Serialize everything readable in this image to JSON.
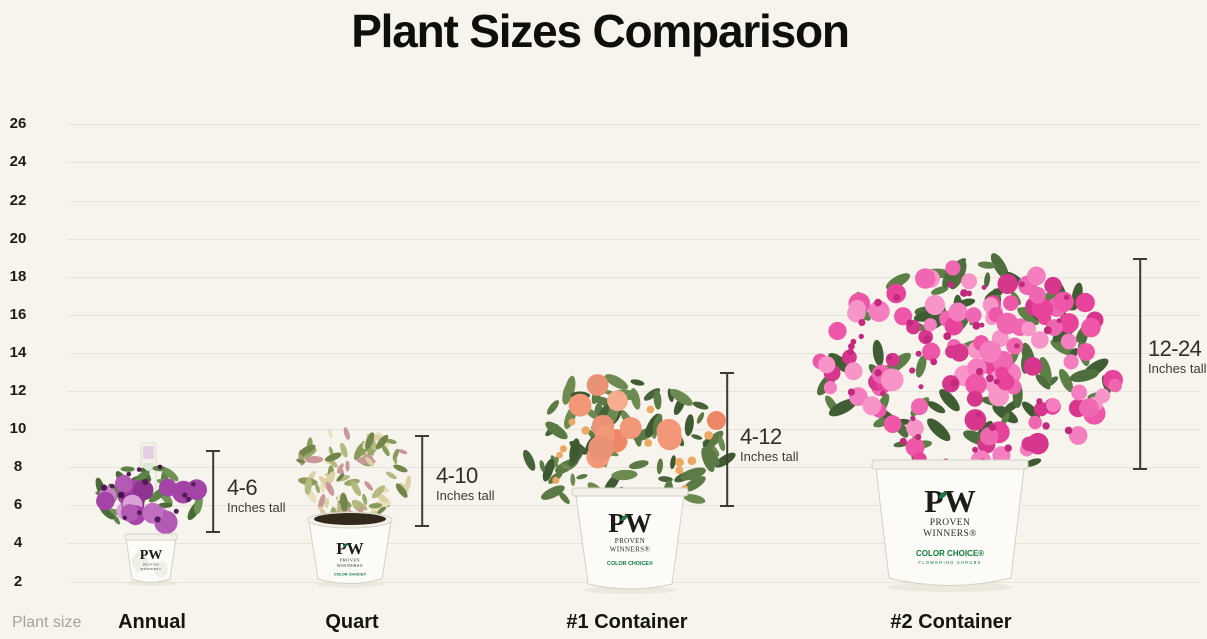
{
  "title": "Plant Sizes Comparison",
  "x_axis_label": "Plant size",
  "chart_data": {
    "type": "bar",
    "subtype": "pictorial-range-comparison",
    "title": "Plant Sizes Comparison",
    "xlabel": "Plant size",
    "ylabel": "",
    "y_unit": "inches",
    "y_ticks": [
      26,
      24,
      22,
      20,
      18,
      16,
      14,
      12,
      10,
      8,
      6,
      4,
      2
    ],
    "ylim": [
      2,
      26
    ],
    "grid": "on",
    "categories": [
      "Annual",
      "Quart",
      "#1 Container",
      "#2 Container"
    ],
    "series": [
      {
        "name": "Height range (Inches tall)",
        "min_values": [
          4,
          4,
          4,
          12
        ],
        "max_values": [
          6,
          10,
          12,
          24
        ]
      }
    ],
    "annotations": [
      "4-6 Inches tall",
      "4-10 Inches tall",
      "4-12 Inches tall",
      "12-24 Inches tall"
    ]
  },
  "plants": [
    {
      "label": "Annual",
      "range": "4-6",
      "caption": "Inches tall",
      "pot": {
        "logo": "PW",
        "brand_line1": "PROVEN",
        "brand_line2": "WINNERS®"
      },
      "palette": {
        "leaves": [
          "#5e8247",
          "#4b6b37",
          "#6f9355"
        ],
        "flowers": [
          "#b25ab4",
          "#a344a6",
          "#c97fcb",
          "#8f3490",
          "#d9a0da",
          "#bf6ec0"
        ],
        "centers": [
          "#551b59",
          "#46124b"
        ]
      }
    },
    {
      "label": "Quart",
      "range": "4-10",
      "caption": "Inches tall",
      "pot": {
        "logo": "PW",
        "brand_line1": "PROVEN",
        "brand_line2": "WINNERS®",
        "badge": "COLOR CHOICE®"
      },
      "palette": {
        "leaves": [
          "#e9dfba",
          "#ddd0a2",
          "#8b9b5c",
          "#72864c",
          "#b4b97f",
          "#c9989a",
          "#9aa869"
        ]
      }
    },
    {
      "label": "#1 Container",
      "range": "4-12",
      "caption": "Inches tall",
      "pot": {
        "logo": "PW",
        "brand_line1": "PROVEN",
        "brand_line2": "WINNERS®",
        "badge": "COLOR CHOICE®"
      },
      "palette": {
        "leaves": [
          "#5c7a45",
          "#486339",
          "#6d8a50",
          "#3f5a33"
        ],
        "flowers": [
          "#f29878",
          "#ee8765",
          "#f6ad8d",
          "#ea9276",
          "#f8b99c"
        ],
        "centers": [
          "#eda964"
        ]
      }
    },
    {
      "label": "#2 Container",
      "range": "12-24",
      "caption": "Inches tall",
      "pot": {
        "logo": "PW",
        "brand_line1": "PROVEN",
        "brand_line2": "WINNERS®",
        "badge": "COLOR CHOICE®",
        "badge_sub": "FLOWERING SHRUBS"
      },
      "palette": {
        "leaves": [
          "#4e6f3d",
          "#3f5c33",
          "#5d7f48"
        ],
        "flowers": [
          "#ee57a7",
          "#e8439b",
          "#f47ec0",
          "#d6368c",
          "#f795c9",
          "#ef66b1"
        ],
        "centers": [
          "#c22a7d"
        ]
      }
    }
  ],
  "colors": {
    "background": "#f6f4ec",
    "gridline": "#e7e4d9",
    "title_text": "#0e0e0b",
    "tick_text": "#1d1c17",
    "category_text": "#15140e",
    "muted_text": "#a6a399",
    "annotation": "#2f2e27",
    "bracket": "#3c3b30",
    "pw_green": "#0f7c3f",
    "pot_fill": "#fcfbf7",
    "pot_stroke": "#d4d1c3"
  }
}
